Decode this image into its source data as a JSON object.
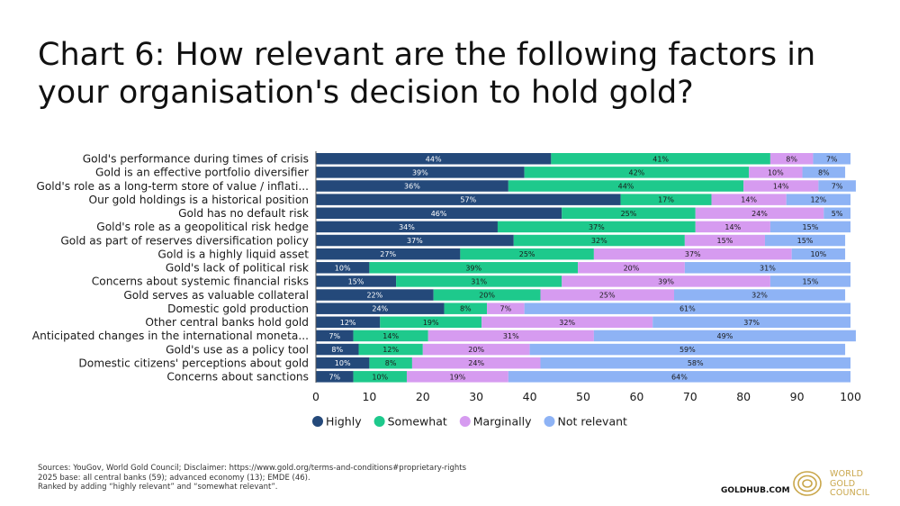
{
  "title": "Chart 6: How relevant are the following factors in your organisation's decision to hold gold?",
  "footnotes": [
    "Sources: YouGov, World Gold Council; Disclaimer: https://www.gold.org/terms-and-conditions#proprietary-rights",
    "2025 base: all central banks (59); advanced economy (13); EMDE (46).",
    "Ranked by adding “highly relevant” and “somewhat relevant”."
  ],
  "site": "GOLDHUB.COM",
  "logo": {
    "lines": [
      "WORLD",
      "GOLD",
      "COUNCIL"
    ],
    "icon": "gold-bars-icon",
    "color": "#c9a64a"
  },
  "colors": {
    "highly": "#24497a",
    "somewhat": "#1ec98c",
    "marginally": "#d69bf0",
    "not_relevant": "#8eb3f5"
  },
  "chart_data": {
    "type": "bar",
    "orientation": "horizontal",
    "stacked": true,
    "categories": [
      "Gold's performance during times of crisis",
      "Gold is an effective portfolio diversifier",
      "Gold's role as a long-term store of value / inflati...",
      "Our gold holdings is a historical position",
      "Gold has no default risk",
      "Gold's role as a geopolitical risk hedge",
      "Gold as part of reserves diversification policy",
      "Gold is a highly liquid asset",
      "Gold's lack of political risk",
      "Concerns about systemic financial risks",
      "Gold serves as valuable collateral",
      "Domestic gold production",
      "Other central banks hold gold",
      "Anticipated changes in the international moneta...",
      "Gold's use as a policy tool",
      "Domestic citizens' perceptions about gold",
      "Concerns about sanctions"
    ],
    "series": [
      {
        "name": "Highly",
        "key": "highly",
        "values": [
          44,
          39,
          36,
          57,
          46,
          34,
          37,
          27,
          10,
          15,
          22,
          24,
          12,
          7,
          8,
          10,
          7
        ],
        "labels": [
          "44%",
          "39%",
          "36%",
          "57%",
          "46%",
          "34%",
          "37%",
          "27%",
          "10%",
          "15%",
          "22%",
          "24%",
          "12%",
          "7%",
          "8%",
          "10%",
          "7%"
        ]
      },
      {
        "name": "Somewhat",
        "key": "somewhat",
        "values": [
          41,
          42,
          44,
          17,
          25,
          37,
          32,
          25,
          39,
          31,
          20,
          8,
          19,
          14,
          12,
          8,
          10
        ],
        "labels": [
          "41%",
          "42%",
          "44%",
          "17%",
          "25%",
          "37%",
          "32%",
          "25%",
          "39%",
          "31%",
          "20%",
          "8%",
          "19%",
          "14%",
          "12%",
          "8%",
          "10%"
        ]
      },
      {
        "name": "Marginally",
        "key": "marginally",
        "values": [
          8,
          10,
          14,
          14,
          24,
          14,
          15,
          37,
          20,
          39,
          25,
          7,
          32,
          31,
          20,
          24,
          19
        ],
        "labels": [
          "8%",
          "10%",
          "14%",
          "14%",
          "24%",
          "14%",
          "15%",
          "37%",
          "20%",
          "39%",
          "25%",
          "7%",
          "32%",
          "31%",
          "20%",
          "24%",
          "19%"
        ]
      },
      {
        "name": "Not relevant",
        "key": "not_relevant",
        "values": [
          7,
          8,
          7,
          12,
          5,
          15,
          15,
          10,
          31,
          15,
          32,
          61,
          37,
          49,
          59,
          58,
          64
        ],
        "labels": [
          "7%",
          "8%",
          "7%",
          "12%",
          "5%",
          "15%",
          "15%",
          "10%",
          "31%",
          "15%",
          "32%",
          "61%",
          "37%",
          "49%",
          "59%",
          "58%",
          "64%"
        ]
      }
    ],
    "xlim": [
      0,
      100
    ],
    "xticks": [
      "0",
      "10",
      "20",
      "30",
      "40",
      "50",
      "60",
      "70",
      "80",
      "90",
      "100"
    ],
    "legend_position": "bottom",
    "grid": false
  }
}
